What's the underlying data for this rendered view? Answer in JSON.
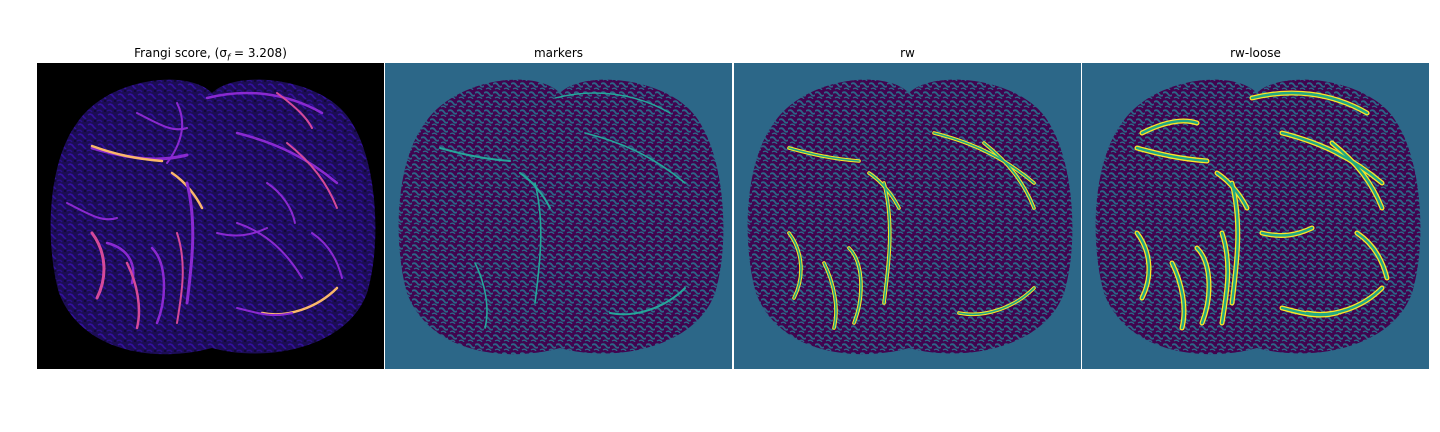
{
  "panels": [
    {
      "title": "Frangi score, (σ",
      "title_sub": "f",
      "title_tail": " = 3.208)",
      "image": "frangi-score-map",
      "colors": {
        "background": "#000000",
        "tissue": "#1c0d55",
        "texture": "#3410a0",
        "vessel_low": "#8a2ad0",
        "vessel_mid": "#d54a9a",
        "vessel_high": "#fbb86a"
      }
    },
    {
      "title": "markers",
      "image": "markers-map",
      "colors": {
        "background": "#2c6788",
        "tissue": "#41044f",
        "mesh": "#2c6788",
        "marker": "#26a69a"
      }
    },
    {
      "title": "rw",
      "image": "rw-map",
      "colors": {
        "background": "#2c6788",
        "tissue": "#41044f",
        "mesh": "#2c6788",
        "vessel": "#22a884",
        "edge": "#fde725"
      }
    },
    {
      "title": "rw-loose",
      "image": "rw-loose-map",
      "colors": {
        "background": "#2c6788",
        "tissue": "#41044f",
        "mesh": "#2c6788",
        "vessel": "#22a884",
        "edge": "#fde725"
      }
    }
  ]
}
